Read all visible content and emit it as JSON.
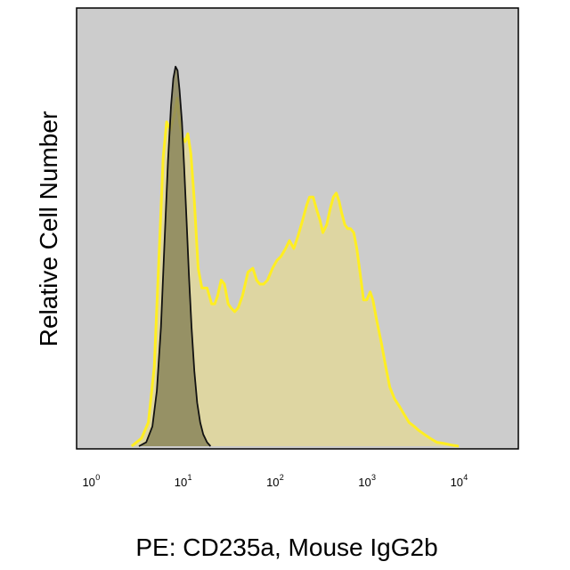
{
  "chart_data": {
    "type": "area",
    "xscale": "log",
    "xlim": [
      0.63,
      40000
    ],
    "ylim": [
      0,
      1
    ],
    "xlabel": "PE: CD235a, Mouse IgG2b",
    "ylabel": "Relative Cell Number",
    "x_ticks": [
      {
        "base": "10",
        "exp": "0",
        "value": 1
      },
      {
        "base": "10",
        "exp": "1",
        "value": 10
      },
      {
        "base": "10",
        "exp": "2",
        "value": 100
      },
      {
        "base": "10",
        "exp": "3",
        "value": 1000
      },
      {
        "base": "10",
        "exp": "4",
        "value": 10000
      }
    ],
    "grid": false,
    "background": "#cccccc",
    "series": [
      {
        "color": "#ffee22",
        "fill": "#ded6a2",
        "points": [
          [
            2.5,
            0.0
          ],
          [
            3.2,
            0.02
          ],
          [
            3.8,
            0.06
          ],
          [
            4.4,
            0.2
          ],
          [
            5.0,
            0.5
          ],
          [
            5.5,
            0.73
          ],
          [
            6.0,
            0.82
          ],
          [
            6.6,
            0.8
          ],
          [
            7.3,
            0.84
          ],
          [
            7.8,
            0.88
          ],
          [
            8.3,
            0.82
          ],
          [
            8.9,
            0.78
          ],
          [
            9.5,
            0.77
          ],
          [
            10.2,
            0.79
          ],
          [
            11.0,
            0.74
          ],
          [
            12.0,
            0.62
          ],
          [
            13.2,
            0.45
          ],
          [
            14.5,
            0.4
          ],
          [
            16.5,
            0.4
          ],
          [
            18.5,
            0.36
          ],
          [
            20.0,
            0.36
          ],
          [
            21.5,
            0.38
          ],
          [
            23.5,
            0.42
          ],
          [
            25.5,
            0.41
          ],
          [
            28.0,
            0.36
          ],
          [
            30.0,
            0.35
          ],
          [
            33.0,
            0.34
          ],
          [
            36.0,
            0.35
          ],
          [
            40.0,
            0.38
          ],
          [
            46.0,
            0.44
          ],
          [
            52.0,
            0.45
          ],
          [
            57.0,
            0.42
          ],
          [
            62.0,
            0.41
          ],
          [
            68.0,
            0.41
          ],
          [
            75.0,
            0.42
          ],
          [
            85.0,
            0.45
          ],
          [
            95.0,
            0.47
          ],
          [
            105.0,
            0.48
          ],
          [
            118.0,
            0.5
          ],
          [
            130.0,
            0.52
          ],
          [
            145.0,
            0.5
          ],
          [
            160.0,
            0.53
          ],
          [
            180.0,
            0.57
          ],
          [
            200.0,
            0.61
          ],
          [
            215.0,
            0.63
          ],
          [
            235.0,
            0.63
          ],
          [
            255.0,
            0.6
          ],
          [
            280.0,
            0.57
          ],
          [
            300.0,
            0.54
          ],
          [
            330.0,
            0.56
          ],
          [
            360.0,
            0.6
          ],
          [
            390.0,
            0.63
          ],
          [
            420.0,
            0.64
          ],
          [
            450.0,
            0.62
          ],
          [
            480.0,
            0.59
          ],
          [
            520.0,
            0.56
          ],
          [
            560.0,
            0.55
          ],
          [
            600.0,
            0.55
          ],
          [
            650.0,
            0.54
          ],
          [
            700.0,
            0.5
          ],
          [
            760.0,
            0.44
          ],
          [
            830.0,
            0.37
          ],
          [
            900.0,
            0.37
          ],
          [
            980.0,
            0.39
          ],
          [
            1050.0,
            0.37
          ],
          [
            1150.0,
            0.32
          ],
          [
            1300.0,
            0.26
          ],
          [
            1450.0,
            0.2
          ],
          [
            1600.0,
            0.15
          ],
          [
            1800.0,
            0.12
          ],
          [
            2050.0,
            0.1
          ],
          [
            2300.0,
            0.08
          ],
          [
            2600.0,
            0.06
          ],
          [
            2950.0,
            0.05
          ],
          [
            3300.0,
            0.04
          ],
          [
            3800.0,
            0.03
          ],
          [
            4400.0,
            0.02
          ],
          [
            5200.0,
            0.01
          ],
          [
            6200.0,
            0.007
          ],
          [
            7500.0,
            0.003
          ],
          [
            9000.0,
            0.0
          ]
        ]
      },
      {
        "color": "#111111",
        "fill": "#8a855a",
        "points": [
          [
            3.0,
            0.0
          ],
          [
            3.6,
            0.01
          ],
          [
            4.2,
            0.05
          ],
          [
            4.7,
            0.14
          ],
          [
            5.2,
            0.3
          ],
          [
            5.7,
            0.52
          ],
          [
            6.2,
            0.72
          ],
          [
            6.7,
            0.86
          ],
          [
            7.1,
            0.93
          ],
          [
            7.5,
            0.96
          ],
          [
            7.9,
            0.95
          ],
          [
            8.3,
            0.9
          ],
          [
            8.8,
            0.82
          ],
          [
            9.3,
            0.71
          ],
          [
            9.9,
            0.57
          ],
          [
            10.5,
            0.43
          ],
          [
            11.2,
            0.3
          ],
          [
            12.0,
            0.19
          ],
          [
            12.9,
            0.11
          ],
          [
            13.9,
            0.06
          ],
          [
            15.0,
            0.03
          ],
          [
            16.5,
            0.01
          ],
          [
            18.0,
            0.0
          ]
        ]
      }
    ]
  }
}
